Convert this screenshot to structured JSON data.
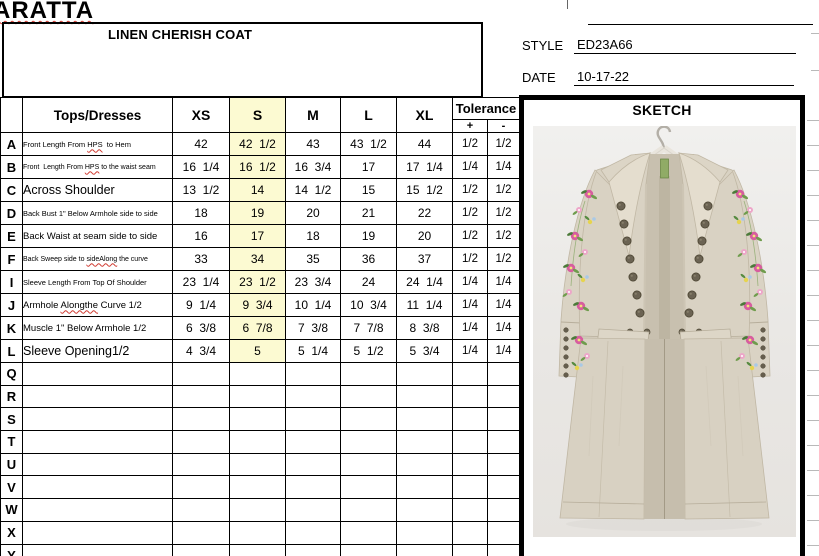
{
  "brand": "ARATTA",
  "product": {
    "title": "LINEN CHERISH COAT"
  },
  "style": {
    "label": "STYLE",
    "value": "ED23A66"
  },
  "date": {
    "label": "DATE",
    "value": "10-17-22"
  },
  "sketch": {
    "title": "SKETCH"
  },
  "colors": {
    "highlight_yellow": "#fcfad2",
    "spellcheck_red": "#d03a30",
    "coat_beige": "#d9d2c3",
    "photo_background": "#eae8e5",
    "button_brown": "#6b6353",
    "embroidery_pink": "#d75d9f",
    "embroidery_green": "#6f9c4d"
  },
  "table": {
    "description_header": "Tops/Dresses",
    "size_headers": [
      "XS",
      "S",
      "M",
      "L",
      "XL"
    ],
    "tolerance_header": "Tolerance",
    "tolerance_sub": [
      "+",
      "-"
    ],
    "highlight_column": "S",
    "rows": [
      {
        "letter": "A",
        "label": "Front Length From HPS  to Hem",
        "label_size": "xs",
        "misspelled": [
          "HPS"
        ],
        "values": [
          "42",
          "42  1/2",
          "43",
          "43  1/2",
          "44"
        ],
        "tol_plus": "1/2",
        "tol_minus": "1/2"
      },
      {
        "letter": "B",
        "label": "Front  Length From HPS to the waist seam",
        "label_size": "xxs",
        "misspelled": [
          "HPS"
        ],
        "values": [
          "16  1/4",
          "16  1/2",
          "16  3/4",
          "17",
          "17  1/4"
        ],
        "tol_plus": "1/4",
        "tol_minus": "1/4"
      },
      {
        "letter": "C",
        "label": "Across Shoulder",
        "label_size": "lg",
        "misspelled": [],
        "values": [
          "13  1/2",
          "14",
          "14  1/2",
          "15",
          "15  1/2"
        ],
        "tol_plus": "1/2",
        "tol_minus": "1/2"
      },
      {
        "letter": "D",
        "label": "Back Bust 1\" Below Armhole side to side",
        "label_size": "xs",
        "misspelled": [],
        "values": [
          "18",
          "19",
          "20",
          "21",
          "22"
        ],
        "tol_plus": "1/2",
        "tol_minus": "1/2"
      },
      {
        "letter": "E",
        "label": "Back Waist at seam side to side",
        "label_size": "sm",
        "misspelled": [],
        "values": [
          "16",
          "17",
          "18",
          "19",
          "20"
        ],
        "tol_plus": "1/2",
        "tol_minus": "1/2"
      },
      {
        "letter": "F",
        "label": "Back Sweep side to sideAlong the curve",
        "label_size": "xxs",
        "misspelled": [
          "sideAlong"
        ],
        "values": [
          "33",
          "34",
          "35",
          "36",
          "37"
        ],
        "tol_plus": "1/2",
        "tol_minus": "1/2"
      },
      {
        "letter": "I",
        "label": "Sleeve Length From Top Of Shoulder",
        "label_size": "xs",
        "misspelled": [],
        "values": [
          "23  1/4",
          "23  1/2",
          "23  3/4",
          "24",
          "24  1/4"
        ],
        "tol_plus": "1/4",
        "tol_minus": "1/4"
      },
      {
        "letter": "J",
        "label": "Armhole Alongthe Curve 1/2",
        "label_size": "sm",
        "misspelled": [
          "Alongthe"
        ],
        "values": [
          "9  1/4",
          "9  3/4",
          "10  1/4",
          "10  3/4",
          "11  1/4"
        ],
        "tol_plus": "1/4",
        "tol_minus": "1/4"
      },
      {
        "letter": "K",
        "label": "Muscle 1\" Below Armhole 1/2",
        "label_size": "sm",
        "misspelled": [],
        "values": [
          "6  3/8",
          "6  7/8",
          "7  3/8",
          "7  7/8",
          "8  3/8"
        ],
        "tol_plus": "1/4",
        "tol_minus": "1/4"
      },
      {
        "letter": "L",
        "label": "Sleeve Opening1/2",
        "label_size": "lg",
        "misspelled": [],
        "values": [
          "4  3/4",
          "5",
          "5  1/4",
          "5  1/2",
          "5  3/4"
        ],
        "tol_plus": "1/4",
        "tol_minus": "1/4"
      }
    ],
    "empty_row_letters": [
      "Q",
      "R",
      "S",
      "T",
      "U",
      "V",
      "W",
      "X",
      "Y"
    ]
  }
}
